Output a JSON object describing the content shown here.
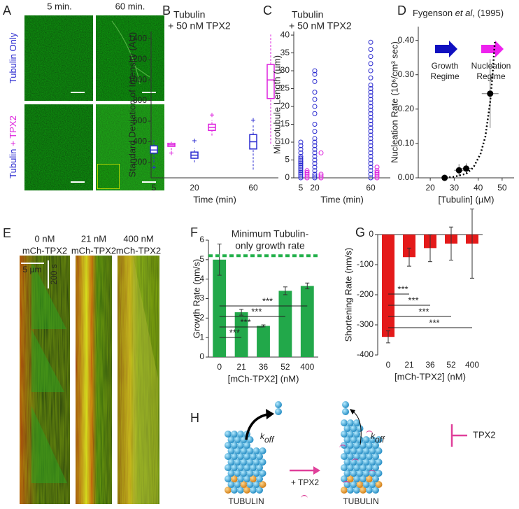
{
  "panel_labels": {
    "a": "A",
    "b": "B",
    "c": "C",
    "d": "D",
    "e": "E",
    "f": "F",
    "g": "G",
    "h": "H"
  },
  "panel_a": {
    "columns": [
      "5 min.",
      "60 min."
    ],
    "rows": [
      [
        "Tubulin Only"
      ],
      [
        "Tubulin",
        "+ TPX2"
      ]
    ]
  },
  "panel_e": {
    "conditions": [
      [
        "0 nM",
        "mCh-TPX2"
      ],
      [
        "21 nM",
        "mCh-TPX2"
      ],
      [
        "400 nM",
        "mCh-TPX2"
      ]
    ],
    "scale_space": "5 µm",
    "scale_time": "200 s"
  },
  "panel_h": {
    "k": [
      "k",
      "k"
    ],
    "off": [
      "off",
      "off"
    ],
    "add_label": "+ TPX2",
    "inhibitor": "TPX2",
    "tubulin": [
      "TUBULIN",
      "TUBULIN"
    ]
  },
  "chart_data": [
    {
      "type": "box",
      "y_label": "Standard Deviation of Intensity (AU)",
      "x_label": "Time (min)",
      "categories": [
        "5",
        "20",
        "60"
      ],
      "ylim": [
        50,
        1470
      ],
      "yticks": [
        200,
        400,
        600,
        800,
        1000,
        1200,
        1400
      ],
      "series": [
        {
          "name": "Tubulin",
          "color": "#2b2bd0",
          "values": [
            {
              "min": 200,
              "q1": 290,
              "median": 320,
              "q3": 360,
              "max": 420,
              "outliers": [
                150
              ]
            },
            {
              "min": 200,
              "q1": 240,
              "median": 270,
              "q3": 300,
              "max": 340,
              "outliers": [
                410
              ]
            },
            {
              "min": 130,
              "q1": 330,
              "median": 400,
              "q3": 470,
              "max": 560,
              "outliers": [
                610
              ]
            }
          ]
        },
        {
          "name": "+ 50 nM TPX2",
          "color": "#dd22dd",
          "values": [
            {
              "min": 320,
              "q1": 355,
              "median": 370,
              "q3": 385,
              "max": 400,
              "outliers": [
                290
              ]
            },
            {
              "min": 460,
              "q1": 510,
              "median": 540,
              "q3": 570,
              "max": 610,
              "outliers": [
                660
              ]
            },
            {
              "min": 380,
              "q1": 820,
              "median": 1000,
              "q3": 1150,
              "max": 1440,
              "outliers": []
            }
          ]
        }
      ]
    },
    {
      "type": "strip",
      "y_label": "Microtubule Length (µm)",
      "x_label": "Time (min)",
      "categories": [
        "5",
        "20",
        "60"
      ],
      "ylim": [
        0,
        41
      ],
      "yticks": [
        0,
        5,
        10,
        15,
        20,
        25,
        30,
        35,
        40
      ],
      "series": [
        {
          "name": "Tubulin",
          "color": "#2b2bd0",
          "values": [
            [
              0,
              0.5,
              1,
              1.5,
              2,
              2.5,
              3,
              3.5,
              4,
              4.5,
              5,
              5.5,
              6,
              7,
              8,
              9,
              10
            ],
            [
              0,
              0.5,
              1,
              2,
              3,
              4,
              5,
              6,
              7,
              8,
              9,
              10,
              11,
              13,
              15,
              18,
              20,
              22,
              24,
              27,
              29,
              30
            ],
            [
              0,
              1,
              2,
              3,
              4,
              5,
              6,
              7,
              8,
              9,
              10,
              11,
              12,
              13,
              14,
              15,
              16,
              17,
              18,
              19,
              20,
              21,
              22,
              23,
              24,
              25,
              26,
              28,
              30,
              32,
              34,
              36,
              38
            ]
          ]
        },
        {
          "name": "+ 50 nM TPX2",
          "color": "#dd22dd",
          "values": [
            [
              0,
              0.5,
              1,
              1.5,
              2
            ],
            [
              0,
              0.5,
              1,
              7
            ],
            [
              0,
              0.5,
              1,
              1.5,
              2,
              3
            ]
          ]
        }
      ]
    },
    {
      "type": "scatter",
      "title": [
        "Fygenson ",
        "et al",
        ",  (1995)"
      ],
      "x_label": "[Tubulin] (µM)",
      "y_label": "Nucleation Rate (10⁶/cm³ sec)",
      "xlim": [
        15,
        55
      ],
      "xticks": [
        20,
        30,
        40,
        50
      ],
      "ylim": [
        0,
        0.44
      ],
      "yticks": [
        {
          "value": 0,
          "label": "0.00"
        },
        {
          "value": 0.1,
          "label": "0.10"
        },
        {
          "value": 0.2,
          "label": "0.20"
        },
        {
          "value": 0.3,
          "label": "0.30"
        },
        {
          "value": 0.4,
          "label": "0.40"
        }
      ],
      "series": [
        {
          "color": "#000000",
          "x": [
            26,
            32,
            35,
            45
          ],
          "values": [
            0,
            0.022,
            0.027,
            0.245
          ],
          "x_errors": [
            0,
            2,
            2,
            3.5
          ],
          "y_errors": [
            0,
            0.018,
            0.015,
            0.1
          ]
        },
        {
          "color": "#000000",
          "style": "dotted",
          "x": [
            25,
            30,
            35,
            38,
            41,
            43,
            45,
            46,
            47
          ],
          "values": [
            0,
            0.003,
            0.012,
            0.03,
            0.07,
            0.12,
            0.22,
            0.3,
            0.4
          ]
        }
      ],
      "annotations": [
        {
          "text": [
            "Growth",
            "Regime"
          ],
          "color": "#1010c0"
        },
        {
          "text": [
            "Nucleation",
            "Regime"
          ],
          "color": "#ee22ee"
        }
      ]
    },
    {
      "type": "bar",
      "y_label": "Growth Rate (nm/s)",
      "x_label": "[mCh-TPX2] (nM)",
      "categories": [
        "0",
        "21",
        "36",
        "52",
        "400"
      ],
      "values": [
        5.0,
        2.3,
        1.6,
        3.4,
        3.65
      ],
      "errors": [
        0.8,
        0.15,
        0.05,
        0.2,
        0.15
      ],
      "color": "#22a84a",
      "ylim": [
        0,
        6
      ],
      "yticks": [
        0,
        1,
        2,
        3,
        4,
        5,
        6
      ],
      "reference": {
        "value": 5.2,
        "label": [
          "Minimum Tubulin-",
          "only growth rate"
        ],
        "color": "#22b04a"
      },
      "significance": [
        "***",
        "***",
        "***",
        "***"
      ]
    },
    {
      "type": "bar",
      "y_label": "Shortening Rate (nm/s)",
      "x_label": "[mCh-TPX2] (nM)",
      "categories": [
        "0",
        "21",
        "36",
        "52",
        "400"
      ],
      "values": [
        -340,
        -75,
        -45,
        -30,
        -30
      ],
      "errors": [
        20,
        30,
        45,
        55,
        115
      ],
      "color": "#e41a1a",
      "ylim": [
        -400,
        0
      ],
      "yticks": [
        -400,
        -300,
        -200,
        -100,
        0
      ],
      "significance": [
        "***",
        "***",
        "***",
        "***"
      ]
    }
  ]
}
